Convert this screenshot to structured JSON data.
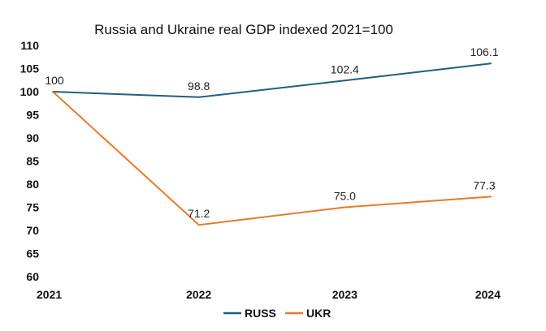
{
  "chart_data": {
    "type": "line",
    "title": "Russia and Ukraine real GDP indexed 2021=100",
    "categories": [
      "2021",
      "2022",
      "2023",
      "2024"
    ],
    "ylim": [
      60,
      110
    ],
    "yticks": [
      60,
      65,
      70,
      75,
      80,
      85,
      90,
      95,
      100,
      105,
      110
    ],
    "grid": false,
    "legend": "bottom",
    "series": [
      {
        "name": "RUSS",
        "color": "#1f5f7f",
        "values": [
          100,
          98.8,
          102.4,
          106.1
        ],
        "labels": [
          "100",
          "98.8",
          "102.4",
          "106.1"
        ]
      },
      {
        "name": "UKR",
        "color": "#e8792b",
        "values": [
          100,
          71.2,
          75.0,
          77.3
        ],
        "labels": [
          "",
          "71.2",
          "75.0",
          "77.3"
        ]
      }
    ]
  }
}
